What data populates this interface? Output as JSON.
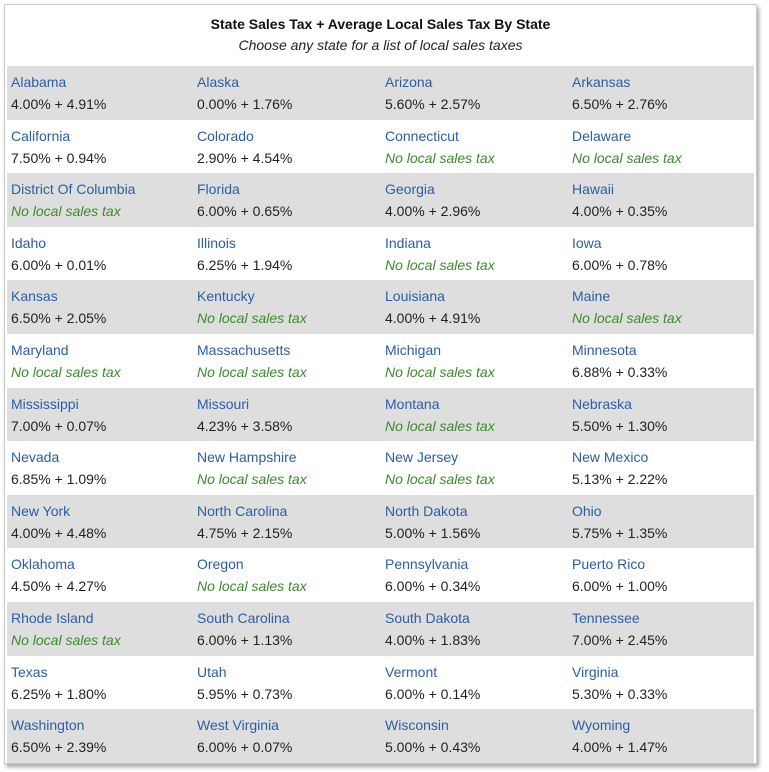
{
  "header": {
    "title": "State Sales Tax + Average Local Sales Tax By State",
    "subtitle": "Choose any state for a list of local sales taxes"
  },
  "colors": {
    "link": "#2a5ea6",
    "no_local": "#3c8a2e",
    "row_shade": "#dedede"
  },
  "rows": [
    [
      {
        "name": "Alabama",
        "rate": "4.00% + 4.91%",
        "none": false
      },
      {
        "name": "Alaska",
        "rate": "0.00% + 1.76%",
        "none": false
      },
      {
        "name": "Arizona",
        "rate": "5.60% + 2.57%",
        "none": false
      },
      {
        "name": "Arkansas",
        "rate": "6.50% + 2.76%",
        "none": false
      }
    ],
    [
      {
        "name": "California",
        "rate": "7.50% + 0.94%",
        "none": false
      },
      {
        "name": "Colorado",
        "rate": "2.90% + 4.54%",
        "none": false
      },
      {
        "name": "Connecticut",
        "rate": "No local sales tax",
        "none": true
      },
      {
        "name": "Delaware",
        "rate": "No local sales tax",
        "none": true
      }
    ],
    [
      {
        "name": "District Of Columbia",
        "rate": "No local sales tax",
        "none": true
      },
      {
        "name": "Florida",
        "rate": "6.00% + 0.65%",
        "none": false
      },
      {
        "name": "Georgia",
        "rate": "4.00% + 2.96%",
        "none": false
      },
      {
        "name": "Hawaii",
        "rate": "4.00% + 0.35%",
        "none": false
      }
    ],
    [
      {
        "name": "Idaho",
        "rate": "6.00% + 0.01%",
        "none": false
      },
      {
        "name": "Illinois",
        "rate": "6.25% + 1.94%",
        "none": false
      },
      {
        "name": "Indiana",
        "rate": "No local sales tax",
        "none": true
      },
      {
        "name": "Iowa",
        "rate": "6.00% + 0.78%",
        "none": false
      }
    ],
    [
      {
        "name": "Kansas",
        "rate": "6.50% + 2.05%",
        "none": false
      },
      {
        "name": "Kentucky",
        "rate": "No local sales tax",
        "none": true
      },
      {
        "name": "Louisiana",
        "rate": "4.00% + 4.91%",
        "none": false
      },
      {
        "name": "Maine",
        "rate": "No local sales tax",
        "none": true
      }
    ],
    [
      {
        "name": "Maryland",
        "rate": "No local sales tax",
        "none": true
      },
      {
        "name": "Massachusetts",
        "rate": "No local sales tax",
        "none": true
      },
      {
        "name": "Michigan",
        "rate": "No local sales tax",
        "none": true
      },
      {
        "name": "Minnesota",
        "rate": "6.88% + 0.33%",
        "none": false
      }
    ],
    [
      {
        "name": "Mississippi",
        "rate": "7.00% + 0.07%",
        "none": false
      },
      {
        "name": "Missouri",
        "rate": "4.23% + 3.58%",
        "none": false
      },
      {
        "name": "Montana",
        "rate": "No local sales tax",
        "none": true
      },
      {
        "name": "Nebraska",
        "rate": "5.50% + 1.30%",
        "none": false
      }
    ],
    [
      {
        "name": "Nevada",
        "rate": "6.85% + 1.09%",
        "none": false
      },
      {
        "name": "New Hampshire",
        "rate": "No local sales tax",
        "none": true
      },
      {
        "name": "New Jersey",
        "rate": "No local sales tax",
        "none": true
      },
      {
        "name": "New Mexico",
        "rate": "5.13% + 2.22%",
        "none": false
      }
    ],
    [
      {
        "name": "New York",
        "rate": "4.00% + 4.48%",
        "none": false
      },
      {
        "name": "North Carolina",
        "rate": "4.75% + 2.15%",
        "none": false
      },
      {
        "name": "North Dakota",
        "rate": "5.00% + 1.56%",
        "none": false
      },
      {
        "name": "Ohio",
        "rate": "5.75% + 1.35%",
        "none": false
      }
    ],
    [
      {
        "name": "Oklahoma",
        "rate": "4.50% + 4.27%",
        "none": false
      },
      {
        "name": "Oregon",
        "rate": "No local sales tax",
        "none": true
      },
      {
        "name": "Pennsylvania",
        "rate": "6.00% + 0.34%",
        "none": false
      },
      {
        "name": "Puerto Rico",
        "rate": "6.00% + 1.00%",
        "none": false
      }
    ],
    [
      {
        "name": "Rhode Island",
        "rate": "No local sales tax",
        "none": true
      },
      {
        "name": "South Carolina",
        "rate": "6.00% + 1.13%",
        "none": false
      },
      {
        "name": "South Dakota",
        "rate": "4.00% + 1.83%",
        "none": false
      },
      {
        "name": "Tennessee",
        "rate": "7.00% + 2.45%",
        "none": false
      }
    ],
    [
      {
        "name": "Texas",
        "rate": "6.25% + 1.80%",
        "none": false
      },
      {
        "name": "Utah",
        "rate": "5.95% + 0.73%",
        "none": false
      },
      {
        "name": "Vermont",
        "rate": "6.00% + 0.14%",
        "none": false
      },
      {
        "name": "Virginia",
        "rate": "5.30% + 0.33%",
        "none": false
      }
    ],
    [
      {
        "name": "Washington",
        "rate": "6.50% + 2.39%",
        "none": false
      },
      {
        "name": "West Virginia",
        "rate": "6.00% + 0.07%",
        "none": false
      },
      {
        "name": "Wisconsin",
        "rate": "5.00% + 0.43%",
        "none": false
      },
      {
        "name": "Wyoming",
        "rate": "4.00% + 1.47%",
        "none": false
      }
    ]
  ]
}
